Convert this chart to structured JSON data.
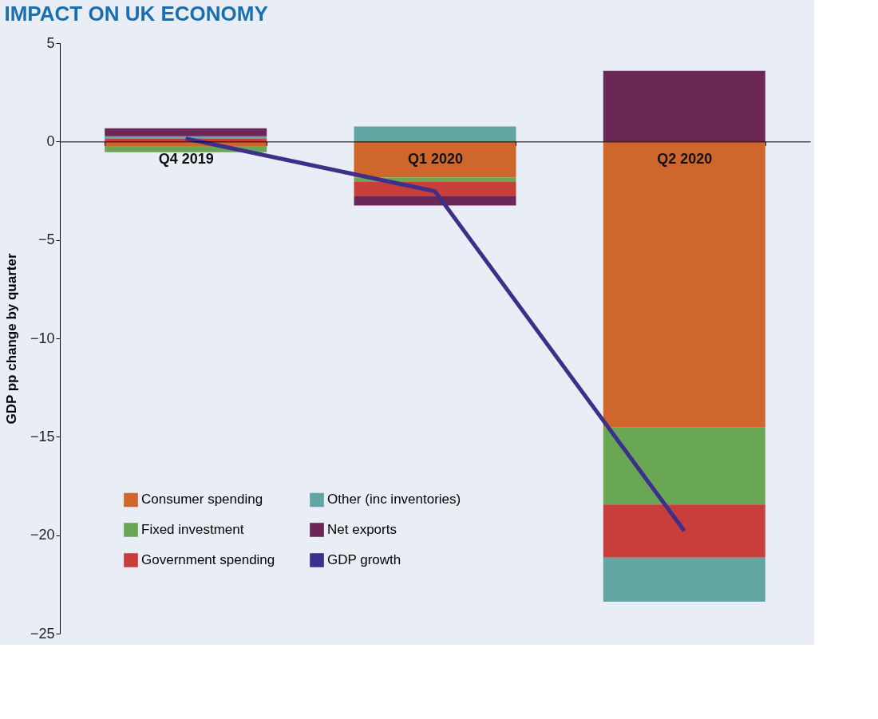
{
  "chart_data": {
    "type": "bar",
    "title": "IMPACT ON UK ECONOMY",
    "ylabel": "GDP pp change by quarter",
    "categories": [
      "Q4 2019",
      "Q1 2020",
      "Q2 2020"
    ],
    "stacked": true,
    "series": [
      {
        "name": "Consumer spending",
        "color": "#cf662c",
        "values": [
          -0.23,
          -1.83,
          -14.53
        ]
      },
      {
        "name": "Fixed investment",
        "color": "#6aa755",
        "values": [
          -0.31,
          -0.22,
          -3.91
        ]
      },
      {
        "name": "Government spending",
        "color": "#c83e3a",
        "values": [
          0.14,
          -0.73,
          -2.7
        ]
      },
      {
        "name": "Other (inc inventories)",
        "color": "#62a5a3",
        "values": [
          0.13,
          0.76,
          -2.24
        ]
      },
      {
        "name": "Net exports",
        "color": "#6b2755",
        "values": [
          0.4,
          -0.47,
          3.59
        ]
      },
      {
        "name": "GDP growth",
        "color": "#3d2f8a",
        "type": "line",
        "values": [
          0.15,
          -2.53,
          -19.78
        ]
      }
    ],
    "ylim": [
      -25,
      5
    ],
    "yticks": [
      -25,
      -20,
      -15,
      -10,
      -5,
      0,
      5
    ],
    "grid": false,
    "legend": "bottom left"
  }
}
